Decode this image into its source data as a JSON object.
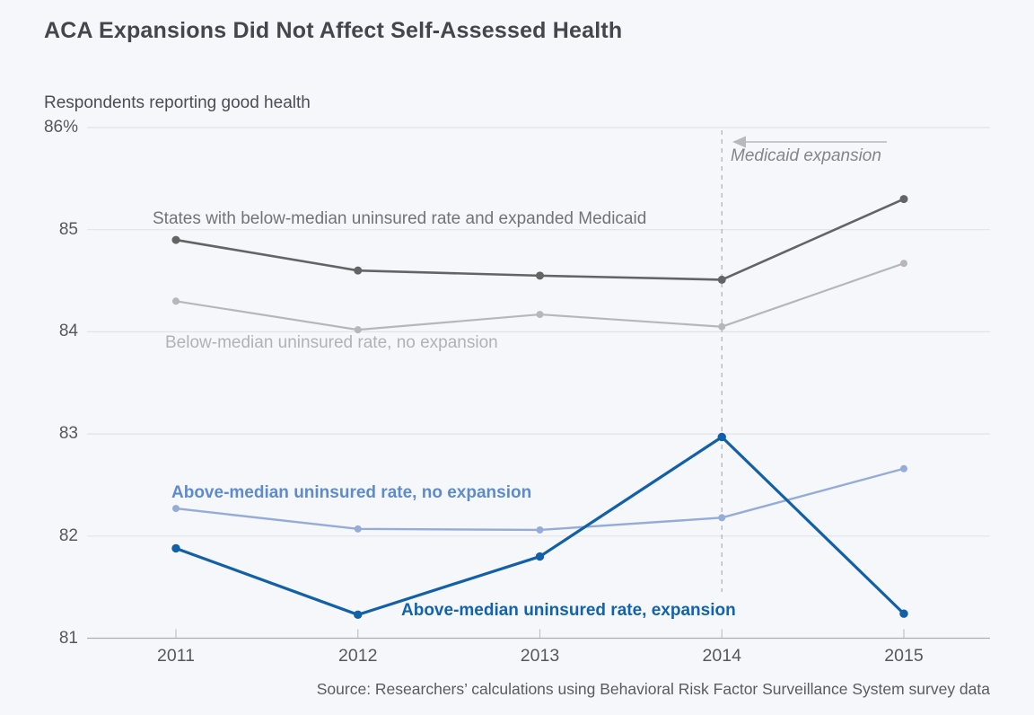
{
  "page": {
    "title": "ACA Expansions Did Not Affect Self-Assessed Health",
    "subtitle": "Respondents reporting good health",
    "source": "Source: Researchers’ calculations using Behavioral Risk Factor Surveillance System survey data"
  },
  "annotation": {
    "label": "Medicaid expansion",
    "arrow_icon": "left-arrow",
    "color": "#85858a"
  },
  "chart_data": {
    "type": "line",
    "title": "ACA Expansions Did Not Affect Self-Assessed Health",
    "ylabel": "Respondents reporting good health",
    "xlabel": "",
    "grid": true,
    "legend_position": "inline-labels",
    "x": [
      "2011",
      "2012",
      "2013",
      "2014",
      "2015"
    ],
    "ylim": [
      81,
      86
    ],
    "yticks": [
      {
        "label": "86%",
        "value": 86
      },
      {
        "label": "85",
        "value": 85
      },
      {
        "label": "84",
        "value": 84
      },
      {
        "label": "83",
        "value": 83
      },
      {
        "label": "82",
        "value": 82
      },
      {
        "label": "81",
        "value": 81
      }
    ],
    "series": [
      {
        "name": "States with below-median uninsured rate and expanded Medicaid",
        "color": "#646467",
        "label_color": "#737377",
        "values": [
          84.9,
          84.6,
          84.55,
          84.51,
          85.3
        ]
      },
      {
        "name": "Below-median uninsured rate, no expansion",
        "color": "#b7b7bb",
        "label_color": "#b2b2b6",
        "values": [
          84.3,
          84.02,
          84.17,
          84.05,
          84.67
        ]
      },
      {
        "name": "Above-median uninsured rate, no expansion",
        "color": "#94acd7",
        "label_color": "#5f8cc9",
        "values": [
          82.27,
          82.07,
          82.06,
          82.18,
          82.66
        ]
      },
      {
        "name": "Above-median uninsured rate, expansion",
        "color": "#1160a8",
        "label_color": "#1263ad",
        "values": [
          81.88,
          81.23,
          81.8,
          82.97,
          81.24
        ]
      }
    ],
    "vline": {
      "x": "2014",
      "style": "dashed",
      "annotation": "Medicaid expansion"
    }
  },
  "style": {
    "background": "#f6f7fa",
    "gridline_color": "#e2e3e7",
    "axis_color": "#aeaeb2",
    "tick_color": "#c2c2c6",
    "vline_color": "#b4b4b8",
    "arrow_color": "#b9b9bd"
  }
}
